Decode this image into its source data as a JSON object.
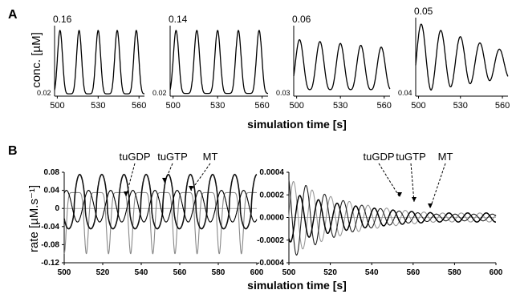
{
  "figure": {
    "panel_a_label": "A",
    "panel_b_label": "B",
    "a_ylabel": "conc. [µM]",
    "a_xlabel": "simulation time [s]",
    "b_ylabel": "rate [µM.s⁻¹]",
    "b_xlabel": "simulation time [s]"
  },
  "chart_data": [
    {
      "type": "line",
      "panel": "A1",
      "xlim": [
        498,
        564
      ],
      "ylim": [
        0.02,
        0.16
      ],
      "xticks": [
        "500",
        "530",
        "560"
      ],
      "ymax_label": "0.16",
      "ymin_label": "0.02",
      "period": 14,
      "amplitude": [
        0.135,
        0.135
      ],
      "baseline": 0.025,
      "sharpness": 3,
      "series": [
        {
          "color": "#000000"
        }
      ]
    },
    {
      "type": "line",
      "panel": "A2",
      "xlim": [
        498,
        564
      ],
      "ylim": [
        0.02,
        0.14
      ],
      "xticks": [
        "500",
        "530",
        "560"
      ],
      "ymax_label": "0.14",
      "ymin_label": "0.02",
      "period": 14,
      "amplitude": [
        0.115,
        0.115
      ],
      "baseline": 0.025,
      "sharpness": 3,
      "series": [
        {
          "color": "#000000"
        }
      ]
    },
    {
      "type": "line",
      "panel": "A3",
      "xlim": [
        498,
        564
      ],
      "ylim": [
        0.03,
        0.06
      ],
      "xticks": [
        "500",
        "530",
        "560"
      ],
      "ymax_label": "0.06",
      "ymin_label": "0.03",
      "period": 14,
      "amplitude": [
        0.023,
        0.019
      ],
      "baseline": 0.033,
      "sharpness": 1.4,
      "series": [
        {
          "color": "#000000"
        }
      ]
    },
    {
      "type": "line",
      "panel": "A4",
      "xlim": [
        498,
        564
      ],
      "ylim": [
        0.04,
        0.05
      ],
      "xticks": [
        "500",
        "530",
        "560"
      ],
      "ymax_label": "0.05",
      "ymin_label": "0.04",
      "period": 14,
      "amplitude": [
        0.0095,
        0.0035
      ],
      "baseline_start": 0.0405,
      "baseline_end": 0.0425,
      "sharpness": 1,
      "series": [
        {
          "color": "#000000"
        }
      ]
    },
    {
      "type": "line",
      "panel": "B1",
      "xlim": [
        500,
        600
      ],
      "ylim": [
        -0.12,
        0.08
      ],
      "xticks": [
        "500",
        "520",
        "540",
        "560",
        "580",
        "600"
      ],
      "yticks": [
        "0.08",
        "0.04",
        "0",
        "-0.04",
        "-0.08",
        "-0.12"
      ],
      "period": 11.5,
      "annotations": [
        "tuGDP",
        "tuGTP",
        "MT"
      ],
      "series": [
        {
          "name": "tuGDP",
          "color": "#888888",
          "center": -0.01,
          "amplitude": 0.1,
          "phase": 0.0,
          "shape": "spike-down"
        },
        {
          "name": "tuGTP",
          "color": "#111111",
          "center": 0.0,
          "amplitude": 0.075,
          "phase": 0.55,
          "shape": "sharp"
        },
        {
          "name": "MT",
          "color": "#000000",
          "center": 0.005,
          "amplitude": 0.035,
          "phase": 0.15,
          "shape": "smooth"
        }
      ]
    },
    {
      "type": "line",
      "panel": "B2",
      "xlim": [
        500,
        600
      ],
      "ylim": [
        -0.0004,
        0.0004
      ],
      "xticks": [
        "500",
        "520",
        "540",
        "560",
        "580",
        "600"
      ],
      "yticks": [
        "0.0004",
        "0.0002",
        "0.0000",
        "-0.0002",
        "-0.0004"
      ],
      "period": 9,
      "annotations": [
        "tuGDP",
        "tuGTP",
        "MT"
      ],
      "series": [
        {
          "name": "tuGDP",
          "color": "#999999",
          "amplitude_start": 0.00034,
          "amplitude_end": 4e-05,
          "phase": 0.0
        },
        {
          "name": "tuGTP",
          "color": "#222222",
          "amplitude_start": 0.00038,
          "amplitude_end": 3e-05,
          "phase": 0.33
        },
        {
          "name": "MT",
          "color": "#000000",
          "amplitude_start": 0.00022,
          "amplitude_end": 4e-05,
          "phase": 0.66
        }
      ]
    }
  ]
}
